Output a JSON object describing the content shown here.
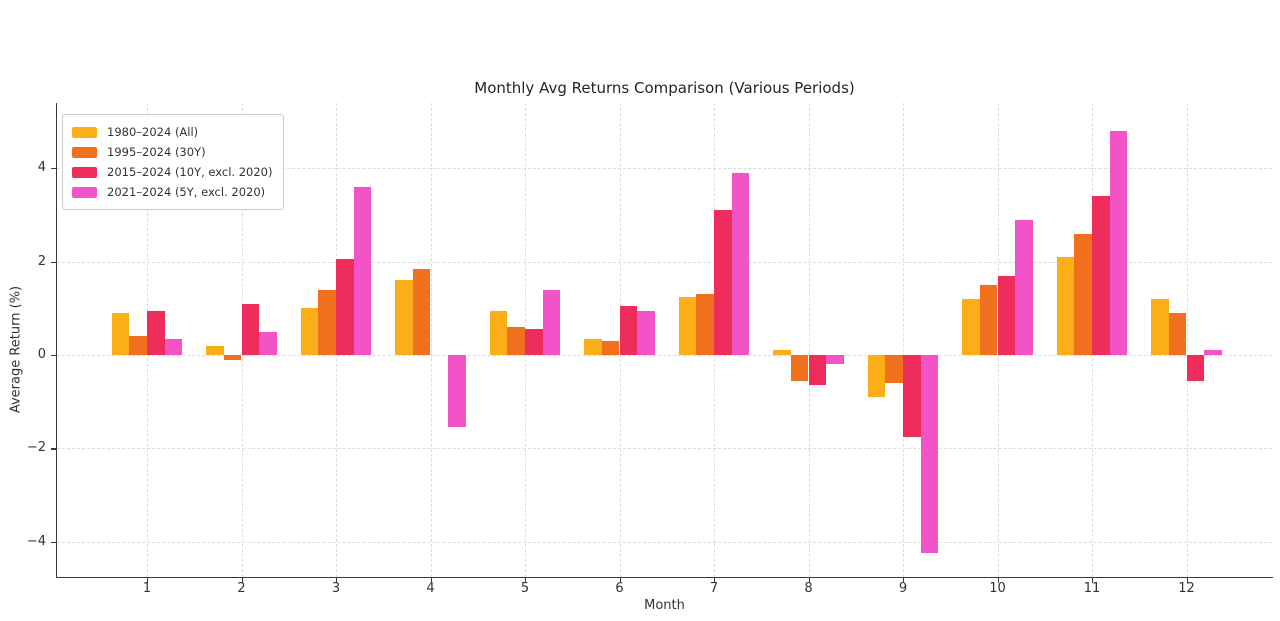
{
  "chart_data": {
    "type": "bar",
    "title": "Monthly Avg Returns Comparison (Various Periods)",
    "xlabel": "Month",
    "ylabel": "Average Return (%)",
    "categories": [
      "1",
      "2",
      "3",
      "4",
      "5",
      "6",
      "7",
      "8",
      "9",
      "10",
      "11",
      "12"
    ],
    "series": [
      {
        "name": "1980–2024 (All)",
        "color": "#FBAE17",
        "values": [
          0.9,
          0.2,
          1.0,
          1.6,
          0.95,
          0.35,
          1.25,
          0.1,
          -0.9,
          1.2,
          2.1,
          1.2
        ]
      },
      {
        "name": "1995–2024 (30Y)",
        "color": "#F0701E",
        "values": [
          0.4,
          -0.1,
          1.4,
          1.85,
          0.6,
          0.3,
          1.3,
          -0.55,
          -0.6,
          1.5,
          2.6,
          0.9
        ]
      },
      {
        "name": "2015–2024 (10Y, excl. 2020)",
        "color": "#EE2D5C",
        "values": [
          0.95,
          1.1,
          2.05,
          0.0,
          0.55,
          1.05,
          3.1,
          -0.65,
          -1.75,
          1.7,
          3.4,
          -0.55
        ]
      },
      {
        "name": "2021–2024 (5Y, excl. 2020)",
        "color": "#F253C6",
        "values": [
          0.35,
          0.5,
          3.6,
          -1.55,
          1.4,
          0.95,
          3.9,
          -0.2,
          -4.25,
          2.9,
          4.8,
          0.1
        ]
      }
    ],
    "ylim": [
      -4.75,
      5.15
    ],
    "yticks": [
      4,
      2,
      0,
      -2,
      -4
    ],
    "ytick_labels": [
      "4",
      "2",
      "0",
      "−2",
      "−4"
    ],
    "grid": true,
    "legend_position": "upper-left",
    "colors": {
      "text": "#333333",
      "title_text": "#262626",
      "spine": "#3a3a3a",
      "gridline": "#dcdcdc",
      "background": "#ffffff"
    }
  }
}
